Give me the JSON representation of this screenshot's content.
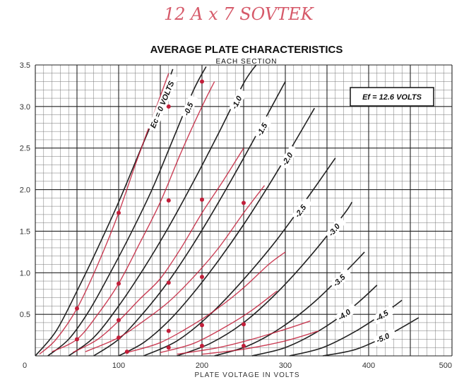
{
  "header": {
    "handwritten_note": "12 A x 7   SOVTEK"
  },
  "chart_data": {
    "type": "line",
    "title": "AVERAGE PLATE CHARACTERISTICS",
    "subtitle": "EACH SECTION",
    "xlabel": "PLATE VOLTAGE IN VOLTS",
    "ylabel": "",
    "xlim": [
      0,
      500
    ],
    "ylim": [
      0,
      3.5
    ],
    "x_ticks": [
      "0",
      "100",
      "200",
      "300",
      "400",
      "500"
    ],
    "y_ticks": [
      "0.5",
      "1.0",
      "1.5",
      "2.0",
      "2.5",
      "3.0",
      "3.5"
    ],
    "grid": true,
    "annotation": "Ef = 12.6 VOLTS",
    "annotation_placement": "top-right",
    "series_color": "#222222",
    "measured_color": "#c21f3a",
    "series": [
      {
        "name": "Ec = 0 VOLTS",
        "points": [
          [
            0,
            0
          ],
          [
            25,
            0.3
          ],
          [
            50,
            0.78
          ],
          [
            75,
            1.3
          ],
          [
            100,
            1.85
          ],
          [
            125,
            2.45
          ],
          [
            150,
            3.05
          ],
          [
            165,
            3.45
          ]
        ]
      },
      {
        "name": "-0.5",
        "points": [
          [
            15,
            0
          ],
          [
            40,
            0.2
          ],
          [
            65,
            0.55
          ],
          [
            90,
            1.0
          ],
          [
            115,
            1.48
          ],
          [
            140,
            2.0
          ],
          [
            165,
            2.6
          ],
          [
            190,
            3.2
          ],
          [
            205,
            3.48
          ]
        ]
      },
      {
        "name": "-1.0",
        "points": [
          [
            40,
            0
          ],
          [
            70,
            0.22
          ],
          [
            100,
            0.6
          ],
          [
            130,
            1.05
          ],
          [
            160,
            1.55
          ],
          [
            190,
            2.1
          ],
          [
            220,
            2.68
          ],
          [
            250,
            3.28
          ],
          [
            265,
            3.5
          ]
        ]
      },
      {
        "name": "-1.5",
        "points": [
          [
            70,
            0
          ],
          [
            100,
            0.2
          ],
          [
            130,
            0.52
          ],
          [
            160,
            0.9
          ],
          [
            190,
            1.35
          ],
          [
            220,
            1.85
          ],
          [
            250,
            2.38
          ],
          [
            280,
            2.93
          ],
          [
            300,
            3.3
          ]
        ]
      },
      {
        "name": "-2.0",
        "points": [
          [
            100,
            0
          ],
          [
            130,
            0.16
          ],
          [
            160,
            0.42
          ],
          [
            190,
            0.76
          ],
          [
            220,
            1.15
          ],
          [
            250,
            1.58
          ],
          [
            280,
            2.05
          ],
          [
            310,
            2.55
          ],
          [
            335,
            2.98
          ]
        ]
      },
      {
        "name": "-2.5",
        "points": [
          [
            130,
            0
          ],
          [
            170,
            0.18
          ],
          [
            210,
            0.5
          ],
          [
            250,
            0.92
          ],
          [
            290,
            1.4
          ],
          [
            330,
            1.95
          ],
          [
            360,
            2.38
          ]
        ]
      },
      {
        "name": "-3.0",
        "points": [
          [
            170,
            0
          ],
          [
            210,
            0.15
          ],
          [
            250,
            0.4
          ],
          [
            290,
            0.76
          ],
          [
            330,
            1.2
          ],
          [
            370,
            1.7
          ],
          [
            380,
            1.85
          ]
        ]
      },
      {
        "name": "-3.5",
        "points": [
          [
            215,
            0
          ],
          [
            255,
            0.12
          ],
          [
            295,
            0.34
          ],
          [
            335,
            0.65
          ],
          [
            375,
            1.04
          ],
          [
            395,
            1.25
          ]
        ]
      },
      {
        "name": "-4.0",
        "points": [
          [
            260,
            0
          ],
          [
            300,
            0.1
          ],
          [
            340,
            0.3
          ],
          [
            380,
            0.58
          ],
          [
            410,
            0.85
          ]
        ]
      },
      {
        "name": "-4.5",
        "points": [
          [
            305,
            0
          ],
          [
            345,
            0.1
          ],
          [
            385,
            0.3
          ],
          [
            425,
            0.56
          ],
          [
            440,
            0.67
          ]
        ]
      },
      {
        "name": "-5.0",
        "points": [
          [
            345,
            0
          ],
          [
            385,
            0.08
          ],
          [
            425,
            0.26
          ],
          [
            460,
            0.46
          ]
        ]
      }
    ],
    "measured_series": [
      {
        "points": [
          [
            5,
            0.02
          ],
          [
            25,
            0.2
          ],
          [
            50,
            0.57
          ],
          [
            75,
            1.1
          ],
          [
            100,
            1.72
          ],
          [
            120,
            2.3
          ],
          [
            140,
            2.85
          ],
          [
            160,
            3.4
          ]
        ]
      },
      {
        "points": [
          [
            20,
            0.05
          ],
          [
            50,
            0.2
          ],
          [
            75,
            0.5
          ],
          [
            100,
            0.87
          ],
          [
            125,
            1.35
          ],
          [
            150,
            1.85
          ],
          [
            175,
            2.45
          ],
          [
            200,
            3.0
          ],
          [
            215,
            3.3
          ]
        ]
      },
      {
        "points": [
          [
            45,
            0.04
          ],
          [
            75,
            0.2
          ],
          [
            100,
            0.42
          ],
          [
            125,
            0.68
          ],
          [
            150,
            0.93
          ],
          [
            175,
            1.3
          ],
          [
            200,
            1.72
          ],
          [
            225,
            2.1
          ],
          [
            250,
            2.5
          ]
        ]
      },
      {
        "points": [
          [
            60,
            0.05
          ],
          [
            100,
            0.22
          ],
          [
            130,
            0.42
          ],
          [
            160,
            0.65
          ],
          [
            190,
            0.95
          ],
          [
            220,
            1.3
          ],
          [
            250,
            1.72
          ],
          [
            275,
            2.05
          ]
        ]
      },
      {
        "points": [
          [
            110,
            0.04
          ],
          [
            150,
            0.16
          ],
          [
            190,
            0.38
          ],
          [
            220,
            0.58
          ],
          [
            250,
            0.82
          ],
          [
            280,
            1.1
          ],
          [
            300,
            1.25
          ]
        ]
      },
      {
        "points": [
          [
            150,
            0.04
          ],
          [
            190,
            0.15
          ],
          [
            230,
            0.36
          ],
          [
            260,
            0.55
          ],
          [
            290,
            0.78
          ]
        ]
      },
      {
        "points": [
          [
            170,
            0.02
          ],
          [
            220,
            0.1
          ],
          [
            260,
            0.2
          ],
          [
            300,
            0.32
          ],
          [
            330,
            0.42
          ]
        ]
      },
      {
        "points": [
          [
            200,
            0.02
          ],
          [
            250,
            0.08
          ],
          [
            300,
            0.18
          ],
          [
            340,
            0.3
          ]
        ]
      }
    ],
    "measured_markers": [
      [
        50,
        0.57
      ],
      [
        100,
        1.72
      ],
      [
        160,
        3.0
      ],
      [
        200,
        3.3
      ],
      [
        50,
        0.2
      ],
      [
        100,
        0.87
      ],
      [
        160,
        1.87
      ],
      [
        200,
        1.88
      ],
      [
        100,
        0.43
      ],
      [
        160,
        0.88
      ],
      [
        200,
        0.95
      ],
      [
        250,
        1.84
      ],
      [
        100,
        0.22
      ],
      [
        160,
        0.3
      ],
      [
        200,
        0.37
      ],
      [
        250,
        0.38
      ],
      [
        110,
        0.05
      ],
      [
        160,
        0.1
      ],
      [
        200,
        0.12
      ],
      [
        250,
        0.12
      ]
    ]
  }
}
